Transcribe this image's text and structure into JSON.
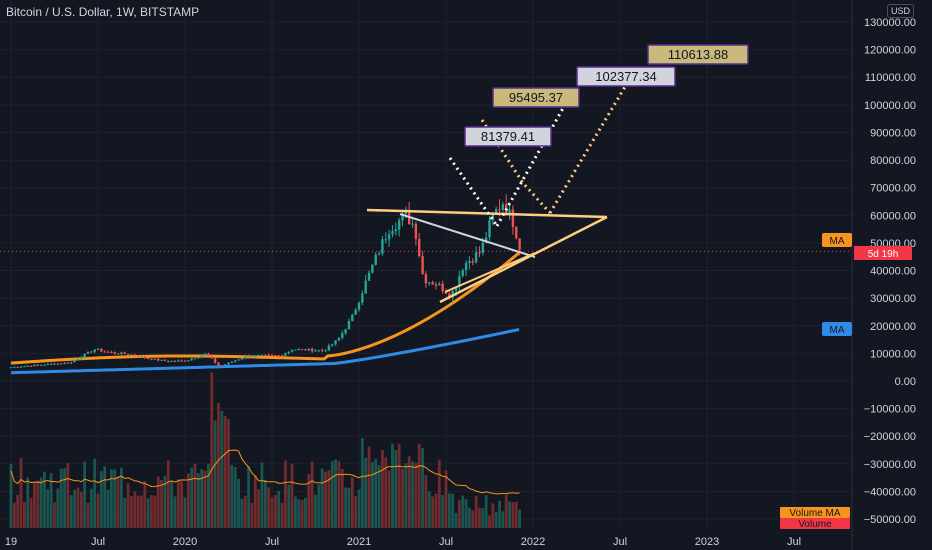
{
  "header": {
    "title": "Bitcoin / U.S. Dollar, 1W, BITSTAMP",
    "currency": "USD"
  },
  "chart_data": {
    "type": "candlestick",
    "x_axis": {
      "ticks": [
        "19",
        "Jul",
        "2020",
        "Jul",
        "2021",
        "Jul",
        "2022",
        "Jul",
        "2023",
        "Jul"
      ],
      "range": [
        "2019-05",
        "2023-10"
      ]
    },
    "y_axis": {
      "position": "right",
      "range": [
        -55000,
        135000
      ],
      "ticks": [
        130000,
        120000,
        110000,
        100000,
        90000,
        80000,
        70000,
        60000,
        50000,
        40000,
        30000,
        20000,
        10000,
        0,
        -10000,
        -20000,
        -30000,
        -40000,
        -50000
      ],
      "tick_labels": [
        "130000.00",
        "120000.00",
        "110000.00",
        "100000.00",
        "90000.00",
        "80000.00",
        "70000.00",
        "60000.00",
        "50000.00",
        "40000.00",
        "30000.00",
        "20000.00",
        "10000.00",
        "0.00",
        "−10000.00",
        "−20000.00",
        "−30000.00",
        "−40000.00",
        "−50000.00"
      ]
    },
    "grid": true,
    "current_price": 47000,
    "price_badge": "5d 19h",
    "ma_badges": [
      {
        "label": "MA",
        "value": 51000,
        "color": "#f7941d"
      },
      {
        "label": "MA",
        "value": 19600,
        "color": "#2e8ae6"
      }
    ],
    "volume_badges": [
      {
        "label": "Volume MA",
        "color": "#f7941d"
      },
      {
        "label": "Volume",
        "color": "#f23645"
      }
    ],
    "price_targets": [
      {
        "label": "81379.41",
        "value": 81379.41,
        "fill": "#d1d4dc",
        "border": "#5b2d8c"
      },
      {
        "label": "95495.37",
        "value": 95495.37,
        "fill": "#c9b97a",
        "border": "#5b2d8c"
      },
      {
        "label": "102377.34",
        "value": 102377.34,
        "fill": "#d1d4dc",
        "border": "#5b2d8c"
      },
      {
        "label": "110613.88",
        "value": 110613.88,
        "fill": "#c9b97a",
        "border": "#5b2d8c"
      }
    ],
    "colors": {
      "up": "#26a69a",
      "down": "#ef5350",
      "ma_fast": "#f7941d",
      "ma_slow": "#2e8ae6",
      "trendline": "#ffcc80",
      "wedge_top": "#d1d4dc",
      "projection": "#ffffff",
      "projection_gold": "#ffcc80",
      "volume_ma": "#f7941d"
    }
  }
}
